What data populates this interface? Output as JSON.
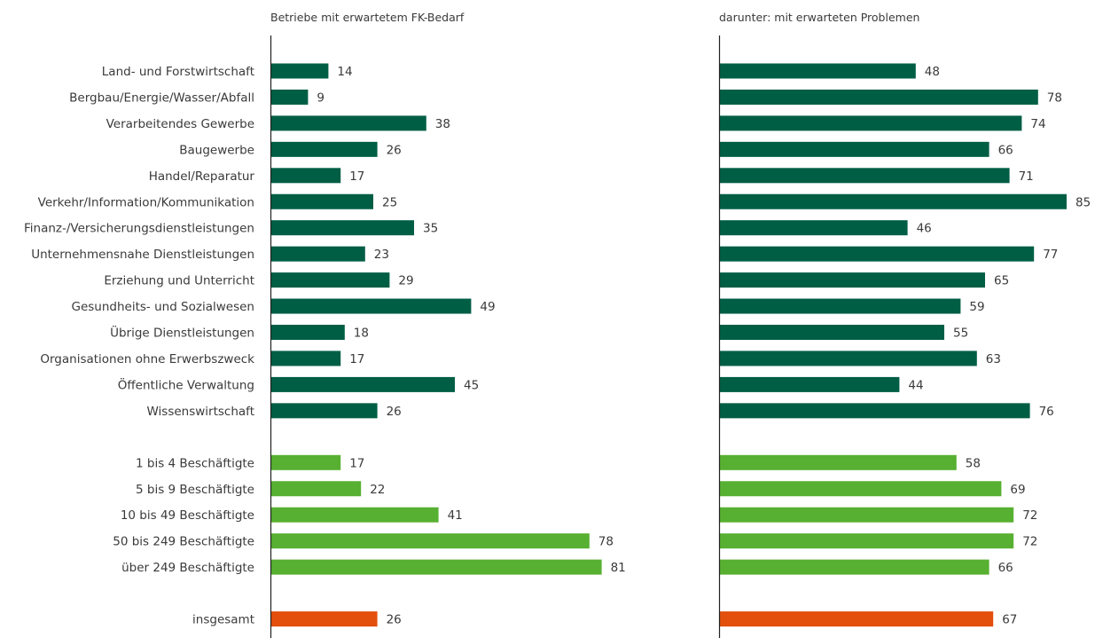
{
  "chart_data": {
    "type": "bar",
    "orientation": "horizontal",
    "categories": [
      "Land- und Forstwirtschaft",
      "Bergbau/Energie/Wasser/Abfall",
      "Verarbeitendes Gewerbe",
      "Baugewerbe",
      "Handel/Reparatur",
      "Verkehr/Information/Kommunikation",
      "Finanz-/Versicherungsdienstleistungen",
      "Unternehmensnahe Dienstleistungen",
      "Erziehung und Unterricht",
      "Gesundheits- und Sozialwesen",
      "Übrige Dienstleistungen",
      "Organisationen ohne Erwerbszweck",
      "Öffentliche Verwaltung",
      "Wissenswirtschaft",
      "1 bis 4 Beschäftigte",
      "5 bis 9 Beschäftigte",
      "10 bis 49 Beschäftigte",
      "50 bis 249 Beschäftigte",
      "über 249 Beschäftigte",
      "insgesamt"
    ],
    "groups": [
      "sector",
      "sector",
      "sector",
      "sector",
      "sector",
      "sector",
      "sector",
      "sector",
      "sector",
      "sector",
      "sector",
      "sector",
      "sector",
      "sector",
      "size",
      "size",
      "size",
      "size",
      "size",
      "total"
    ],
    "group_colors": {
      "sector": "#005e45",
      "size": "#57b031",
      "total": "#e3500e"
    },
    "panels": [
      {
        "title": "Betriebe mit erwartetem FK-Bedarf",
        "values": [
          14,
          9,
          38,
          26,
          17,
          25,
          35,
          23,
          29,
          49,
          18,
          17,
          45,
          26,
          17,
          22,
          41,
          78,
          81,
          26
        ]
      },
      {
        "title": "darunter: mit erwarteten Problemen",
        "values": [
          48,
          78,
          74,
          66,
          71,
          85,
          46,
          77,
          65,
          59,
          55,
          63,
          44,
          76,
          58,
          69,
          72,
          72,
          66,
          67
        ]
      }
    ],
    "xlim": [
      0,
      100
    ],
    "grid": false,
    "legend": "none"
  }
}
